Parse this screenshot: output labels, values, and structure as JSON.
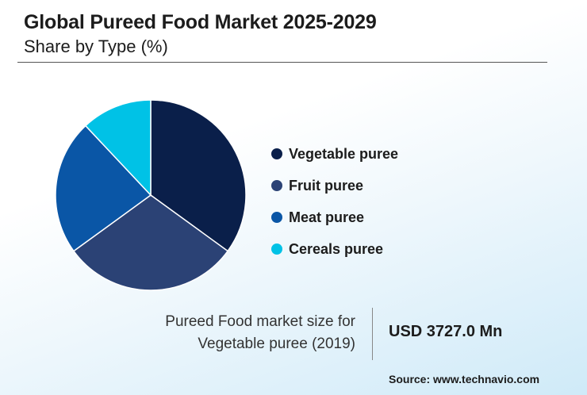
{
  "chart_data": {
    "type": "pie",
    "title": "Global Pureed Food Market 2025-2029",
    "subtitle": "Share by Type (%)",
    "categories": [
      "Vegetable puree",
      "Fruit puree",
      "Meat puree",
      "Cereals puree"
    ],
    "values": [
      35,
      30,
      23,
      12
    ],
    "colors": [
      "#0a1f4a",
      "#2b4275",
      "#0a56a6",
      "#00c2e6"
    ],
    "legend_position": "right"
  },
  "info": {
    "line1": "Pureed Food market size for",
    "line2": "Vegetable puree (2019)",
    "value": "USD 3727.0 Mn"
  },
  "source": "Source: www.technavio.com"
}
